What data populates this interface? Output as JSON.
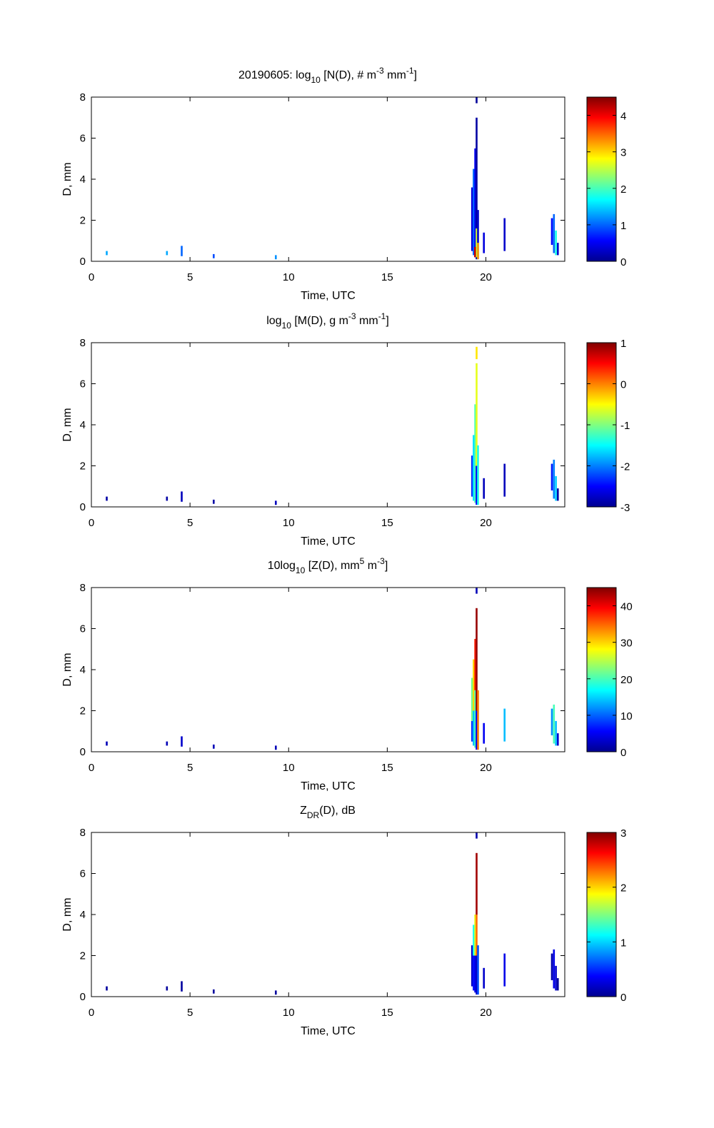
{
  "figure": {
    "background": "#ffffff"
  },
  "colormap": [
    "#00008f",
    "#0000ff",
    "#0080ff",
    "#00ffff",
    "#80ff80",
    "#ffff00",
    "#ff8000",
    "#ff0000",
    "#800000"
  ],
  "chart_data": [
    {
      "type": "heatmap",
      "title_parts": [
        {
          "t": "20190605: log"
        },
        {
          "t": "10",
          "s": "sub"
        },
        {
          "t": " [N(D), # m"
        },
        {
          "t": "-3",
          "s": "sup"
        },
        {
          "t": " mm"
        },
        {
          "t": "-1",
          "s": "sup"
        },
        {
          "t": "]"
        }
      ],
      "xlabel": "Time, UTC",
      "ylabel": "D, mm",
      "xlim": [
        0,
        24
      ],
      "ylim": [
        0,
        8
      ],
      "xticks": [
        0,
        5,
        10,
        15,
        20
      ],
      "yticks": [
        0,
        2,
        4,
        6,
        8
      ],
      "colorbar": {
        "range": [
          0,
          4.5
        ],
        "ticks": [
          0,
          1,
          2,
          3,
          4
        ]
      },
      "segments": [
        {
          "x": 0.78,
          "d0": 0.3,
          "d1": 0.5,
          "v": 1.3
        },
        {
          "x": 3.83,
          "d0": 0.3,
          "d1": 0.5,
          "v": 1.3
        },
        {
          "x": 4.58,
          "d0": 0.25,
          "d1": 0.75,
          "v": 1.0
        },
        {
          "x": 6.2,
          "d0": 0.15,
          "d1": 0.35,
          "v": 0.9
        },
        {
          "x": 9.35,
          "d0": 0.1,
          "d1": 0.3,
          "v": 1.2
        },
        {
          "x": 19.3,
          "d0": 0.5,
          "d1": 3.6,
          "v": 0.4
        },
        {
          "x": 19.38,
          "d0": 0.3,
          "d1": 4.5,
          "v": 1.0
        },
        {
          "x": 19.46,
          "d0": 0.2,
          "d1": 5.5,
          "v": 0.5
        },
        {
          "x": 19.53,
          "d0": 0.1,
          "d1": 7.0,
          "v": 0.1
        },
        {
          "x": 19.53,
          "d0": 0.2,
          "d1": 1.6,
          "v": 2.6
        },
        {
          "x": 19.6,
          "d0": 0.1,
          "d1": 2.5,
          "v": 0.3
        },
        {
          "x": 19.6,
          "d0": 0.1,
          "d1": 0.9,
          "v": 3.2
        },
        {
          "x": 19.45,
          "d0": 0.2,
          "d1": 0.7,
          "v": 4.2
        },
        {
          "x": 19.53,
          "d0": 7.7,
          "d1": 8.0,
          "v": 0.05
        },
        {
          "x": 19.9,
          "d0": 0.4,
          "d1": 1.4,
          "v": 0.4
        },
        {
          "x": 20.95,
          "d0": 0.5,
          "d1": 2.1,
          "v": 0.3
        },
        {
          "x": 23.35,
          "d0": 0.8,
          "d1": 2.1,
          "v": 0.6
        },
        {
          "x": 23.45,
          "d0": 0.4,
          "d1": 2.3,
          "v": 1.0
        },
        {
          "x": 23.55,
          "d0": 0.3,
          "d1": 1.5,
          "v": 1.8
        },
        {
          "x": 23.65,
          "d0": 0.3,
          "d1": 0.9,
          "v": 0.3
        }
      ]
    },
    {
      "type": "heatmap",
      "title_parts": [
        {
          "t": "log"
        },
        {
          "t": "10",
          "s": "sub"
        },
        {
          "t": " [M(D), g m"
        },
        {
          "t": "-3",
          "s": "sup"
        },
        {
          "t": " mm"
        },
        {
          "t": "-1",
          "s": "sup"
        },
        {
          "t": "]"
        }
      ],
      "xlabel": "Time, UTC",
      "ylabel": "D, mm",
      "xlim": [
        0,
        24
      ],
      "ylim": [
        0,
        8
      ],
      "xticks": [
        0,
        5,
        10,
        15,
        20
      ],
      "yticks": [
        0,
        2,
        4,
        6,
        8
      ],
      "colorbar": {
        "range": [
          -3,
          1
        ],
        "ticks": [
          -3,
          -2,
          -1,
          0,
          1
        ]
      },
      "segments": [
        {
          "x": 0.78,
          "d0": 0.3,
          "d1": 0.5,
          "v": -2.9
        },
        {
          "x": 3.83,
          "d0": 0.3,
          "d1": 0.5,
          "v": -2.9
        },
        {
          "x": 4.58,
          "d0": 0.25,
          "d1": 0.75,
          "v": -2.8
        },
        {
          "x": 6.2,
          "d0": 0.15,
          "d1": 0.35,
          "v": -2.9
        },
        {
          "x": 9.35,
          "d0": 0.1,
          "d1": 0.3,
          "v": -2.8
        },
        {
          "x": 19.3,
          "d0": 0.5,
          "d1": 2.5,
          "v": -2.3
        },
        {
          "x": 19.38,
          "d0": 0.3,
          "d1": 3.5,
          "v": -1.6
        },
        {
          "x": 19.46,
          "d0": 0.2,
          "d1": 5.0,
          "v": -1.2
        },
        {
          "x": 19.53,
          "d0": 2.0,
          "d1": 7.0,
          "v": -0.6
        },
        {
          "x": 19.53,
          "d0": 0.1,
          "d1": 2.0,
          "v": -2.5
        },
        {
          "x": 19.6,
          "d0": 0.1,
          "d1": 3.0,
          "v": -1.4
        },
        {
          "x": 19.53,
          "d0": 7.2,
          "d1": 7.8,
          "v": -0.4
        },
        {
          "x": 19.9,
          "d0": 0.4,
          "d1": 1.4,
          "v": -2.8
        },
        {
          "x": 20.95,
          "d0": 0.5,
          "d1": 2.1,
          "v": -2.8
        },
        {
          "x": 23.35,
          "d0": 0.8,
          "d1": 2.1,
          "v": -2.4
        },
        {
          "x": 23.45,
          "d0": 0.4,
          "d1": 2.3,
          "v": -2.0
        },
        {
          "x": 23.55,
          "d0": 0.3,
          "d1": 1.5,
          "v": -1.7
        },
        {
          "x": 23.65,
          "d0": 0.3,
          "d1": 0.9,
          "v": -2.9
        }
      ]
    },
    {
      "type": "heatmap",
      "title_parts": [
        {
          "t": "10log"
        },
        {
          "t": "10",
          "s": "sub"
        },
        {
          "t": " [Z(D),  mm"
        },
        {
          "t": "5",
          "s": "sup"
        },
        {
          "t": " m"
        },
        {
          "t": "-3",
          "s": "sup"
        },
        {
          "t": "]"
        }
      ],
      "xlabel": "Time, UTC",
      "ylabel": "D, mm",
      "xlim": [
        0,
        24
      ],
      "ylim": [
        0,
        8
      ],
      "xticks": [
        0,
        5,
        10,
        15,
        20
      ],
      "yticks": [
        0,
        2,
        4,
        6,
        8
      ],
      "colorbar": {
        "range": [
          0,
          45
        ],
        "ticks": [
          0,
          10,
          20,
          30,
          40
        ]
      },
      "segments": [
        {
          "x": 0.78,
          "d0": 0.3,
          "d1": 0.5,
          "v": 2
        },
        {
          "x": 3.83,
          "d0": 0.3,
          "d1": 0.5,
          "v": 2
        },
        {
          "x": 4.58,
          "d0": 0.25,
          "d1": 0.75,
          "v": 3
        },
        {
          "x": 6.2,
          "d0": 0.15,
          "d1": 0.35,
          "v": 2
        },
        {
          "x": 9.35,
          "d0": 0.1,
          "d1": 0.3,
          "v": 2
        },
        {
          "x": 19.3,
          "d0": 0.5,
          "d1": 1.5,
          "v": 8
        },
        {
          "x": 19.3,
          "d0": 1.5,
          "d1": 3.6,
          "v": 22
        },
        {
          "x": 19.38,
          "d0": 0.3,
          "d1": 2.0,
          "v": 14
        },
        {
          "x": 19.38,
          "d0": 2.0,
          "d1": 4.5,
          "v": 30
        },
        {
          "x": 19.46,
          "d0": 0.2,
          "d1": 3.0,
          "v": 20
        },
        {
          "x": 19.46,
          "d0": 3.0,
          "d1": 5.5,
          "v": 38
        },
        {
          "x": 19.53,
          "d0": 0.1,
          "d1": 2.0,
          "v": 5
        },
        {
          "x": 19.53,
          "d0": 2.0,
          "d1": 7.0,
          "v": 44
        },
        {
          "x": 19.6,
          "d0": 0.1,
          "d1": 3.0,
          "v": 34
        },
        {
          "x": 19.53,
          "d0": 7.7,
          "d1": 8.0,
          "v": 2
        },
        {
          "x": 19.9,
          "d0": 0.4,
          "d1": 1.4,
          "v": 5
        },
        {
          "x": 20.95,
          "d0": 0.5,
          "d1": 2.1,
          "v": 14
        },
        {
          "x": 23.35,
          "d0": 0.8,
          "d1": 2.1,
          "v": 12
        },
        {
          "x": 23.45,
          "d0": 0.4,
          "d1": 2.3,
          "v": 20
        },
        {
          "x": 23.55,
          "d0": 0.3,
          "d1": 1.5,
          "v": 14
        },
        {
          "x": 23.65,
          "d0": 0.3,
          "d1": 0.9,
          "v": 3
        }
      ]
    },
    {
      "type": "heatmap",
      "title_parts": [
        {
          "t": "Z"
        },
        {
          "t": "DR",
          "s": "sub"
        },
        {
          "t": "(D), dB"
        }
      ],
      "xlabel": "Time, UTC",
      "ylabel": "D, mm",
      "xlim": [
        0,
        24
      ],
      "ylim": [
        0,
        8
      ],
      "xticks": [
        0,
        5,
        10,
        15,
        20
      ],
      "yticks": [
        0,
        2,
        4,
        6,
        8
      ],
      "colorbar": {
        "range": [
          0,
          3
        ],
        "ticks": [
          0,
          1,
          2,
          3
        ]
      },
      "segments": [
        {
          "x": 0.78,
          "d0": 0.3,
          "d1": 0.5,
          "v": 0.05
        },
        {
          "x": 3.83,
          "d0": 0.3,
          "d1": 0.5,
          "v": 0.05
        },
        {
          "x": 4.58,
          "d0": 0.25,
          "d1": 0.75,
          "v": 0.05
        },
        {
          "x": 6.2,
          "d0": 0.15,
          "d1": 0.35,
          "v": 0.05
        },
        {
          "x": 9.35,
          "d0": 0.1,
          "d1": 0.3,
          "v": 0.05
        },
        {
          "x": 19.3,
          "d0": 0.5,
          "d1": 2.5,
          "v": 0.2
        },
        {
          "x": 19.38,
          "d0": 0.3,
          "d1": 2.0,
          "v": 0.4
        },
        {
          "x": 19.38,
          "d0": 2.0,
          "d1": 3.5,
          "v": 1.2
        },
        {
          "x": 19.46,
          "d0": 0.2,
          "d1": 2.0,
          "v": 0.3
        },
        {
          "x": 19.46,
          "d0": 2.0,
          "d1": 4.0,
          "v": 1.8
        },
        {
          "x": 19.53,
          "d0": 0.1,
          "d1": 2.0,
          "v": 0.2
        },
        {
          "x": 19.53,
          "d0": 2.0,
          "d1": 4.0,
          "v": 2.3
        },
        {
          "x": 19.53,
          "d0": 4.0,
          "d1": 7.0,
          "v": 2.9
        },
        {
          "x": 19.6,
          "d0": 0.1,
          "d1": 2.5,
          "v": 0.6
        },
        {
          "x": 19.53,
          "d0": 7.7,
          "d1": 8.0,
          "v": 0.1
        },
        {
          "x": 19.9,
          "d0": 0.4,
          "d1": 1.4,
          "v": 0.2
        },
        {
          "x": 20.95,
          "d0": 0.5,
          "d1": 2.1,
          "v": 0.3
        },
        {
          "x": 23.35,
          "d0": 0.8,
          "d1": 2.1,
          "v": 0.1
        },
        {
          "x": 23.45,
          "d0": 0.4,
          "d1": 2.3,
          "v": 0.3
        },
        {
          "x": 23.55,
          "d0": 0.3,
          "d1": 1.5,
          "v": 0.2
        },
        {
          "x": 23.65,
          "d0": 0.3,
          "d1": 0.9,
          "v": 0.05
        }
      ]
    }
  ]
}
